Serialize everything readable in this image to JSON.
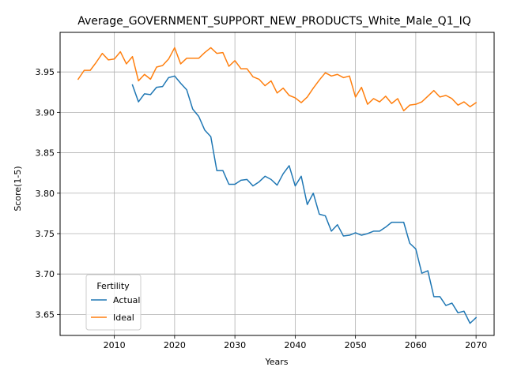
{
  "chart_data": {
    "type": "line",
    "title": "Average_GOVERNMENT_SUPPORT_NEW_PRODUCTS_White_Male_Q1_IQ",
    "xlabel": "Years",
    "ylabel": "Score(1-5)",
    "xlim": [
      2001,
      2073
    ],
    "ylim": [
      3.624,
      3.999
    ],
    "x_ticks": [
      2010,
      2020,
      2030,
      2040,
      2050,
      2060,
      2070
    ],
    "x_tick_labels": [
      "2010",
      "2020",
      "2030",
      "2040",
      "2050",
      "2060",
      "2070"
    ],
    "y_ticks": [
      3.65,
      3.7,
      3.75,
      3.8,
      3.85,
      3.9,
      3.95
    ],
    "y_tick_labels": [
      "3.65",
      "3.70",
      "3.75",
      "3.80",
      "3.85",
      "3.90",
      "3.95"
    ],
    "grid": true,
    "legend": {
      "title": "Fertility",
      "placement": "lower-left"
    },
    "series": [
      {
        "name": "Actual",
        "color": "#1f77b4",
        "x": [
          2013,
          2014,
          2015,
          2016,
          2017,
          2018,
          2019,
          2020,
          2021,
          2022,
          2023,
          2024,
          2025,
          2026,
          2027,
          2028,
          2029,
          2030,
          2031,
          2032,
          2033,
          2034,
          2035,
          2036,
          2037,
          2038,
          2039,
          2040,
          2041,
          2042,
          2043,
          2044,
          2045,
          2046,
          2047,
          2048,
          2049,
          2050,
          2051,
          2052,
          2053,
          2054,
          2055,
          2056,
          2057,
          2058,
          2059,
          2060,
          2061,
          2062,
          2063,
          2064,
          2065,
          2066,
          2067,
          2068,
          2069,
          2070
        ],
        "values": [
          3.934,
          3.913,
          3.923,
          3.922,
          3.931,
          3.932,
          3.943,
          3.945,
          3.936,
          3.928,
          3.904,
          3.895,
          3.878,
          3.87,
          3.828,
          3.828,
          3.811,
          3.811,
          3.816,
          3.817,
          3.809,
          3.814,
          3.821,
          3.817,
          3.81,
          3.824,
          3.834,
          3.809,
          3.821,
          3.786,
          3.8,
          3.774,
          3.772,
          3.753,
          3.761,
          3.747,
          3.748,
          3.751,
          3.748,
          3.75,
          3.753,
          3.753,
          3.758,
          3.764,
          3.764,
          3.764,
          3.738,
          3.731,
          3.701,
          3.704,
          3.672,
          3.672,
          3.661,
          3.664,
          3.652,
          3.654,
          3.639,
          3.646
        ]
      },
      {
        "name": "Ideal",
        "color": "#ff7f0e",
        "x": [
          2004,
          2005,
          2006,
          2007,
          2008,
          2009,
          2010,
          2011,
          2012,
          2013,
          2014,
          2015,
          2016,
          2017,
          2018,
          2019,
          2020,
          2021,
          2022,
          2023,
          2024,
          2025,
          2026,
          2027,
          2028,
          2029,
          2030,
          2031,
          2032,
          2033,
          2034,
          2035,
          2036,
          2037,
          2038,
          2039,
          2040,
          2041,
          2042,
          2043,
          2044,
          2045,
          2046,
          2047,
          2048,
          2049,
          2050,
          2051,
          2052,
          2053,
          2054,
          2055,
          2056,
          2057,
          2058,
          2059,
          2060,
          2061,
          2062,
          2063,
          2064,
          2065,
          2066,
          2067,
          2068,
          2069,
          2070
        ],
        "values": [
          3.941,
          3.952,
          3.952,
          3.962,
          3.973,
          3.965,
          3.966,
          3.975,
          3.96,
          3.969,
          3.939,
          3.947,
          3.941,
          3.956,
          3.958,
          3.966,
          3.98,
          3.96,
          3.967,
          3.967,
          3.967,
          3.974,
          3.98,
          3.973,
          3.974,
          3.957,
          3.964,
          3.954,
          3.954,
          3.944,
          3.941,
          3.933,
          3.939,
          3.924,
          3.93,
          3.921,
          3.918,
          3.912,
          3.919,
          3.93,
          3.94,
          3.949,
          3.945,
          3.947,
          3.943,
          3.945,
          3.919,
          3.931,
          3.91,
          3.917,
          3.913,
          3.92,
          3.911,
          3.917,
          3.902,
          3.909,
          3.91,
          3.913,
          3.92,
          3.927,
          3.919,
          3.921,
          3.917,
          3.909,
          3.913,
          3.907,
          3.912
        ]
      }
    ]
  }
}
